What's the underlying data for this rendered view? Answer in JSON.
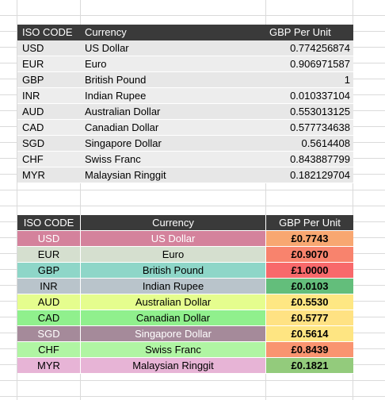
{
  "table1": {
    "headers": [
      "ISO CODE",
      "Currency",
      "GBP Per Unit"
    ],
    "rows": [
      {
        "code": "USD",
        "currency": "US Dollar",
        "value": "0.774256874"
      },
      {
        "code": "EUR",
        "currency": "Euro",
        "value": "0.906971587"
      },
      {
        "code": "GBP",
        "currency": "British Pound",
        "value": "1"
      },
      {
        "code": "INR",
        "currency": "Indian Rupee",
        "value": "0.010337104"
      },
      {
        "code": "AUD",
        "currency": "Australian Dollar",
        "value": "0.553013125"
      },
      {
        "code": "CAD",
        "currency": "Canadian Dollar",
        "value": "0.577734638"
      },
      {
        "code": "SGD",
        "currency": "Singapore Dollar",
        "value": "0.5614408"
      },
      {
        "code": "CHF",
        "currency": "Swiss Franc",
        "value": "0.843887799"
      },
      {
        "code": "MYR",
        "currency": "Malaysian Ringgit",
        "value": "0.182129704"
      }
    ]
  },
  "table2": {
    "headers": [
      "ISO CODE",
      "Currency",
      "GBP Per Unit"
    ],
    "rows": [
      {
        "code": "USD",
        "currency": "US Dollar",
        "value": "£0.7743",
        "row_color": "#d4829c",
        "text_color": "#ffffff",
        "value_color": "#f8a771"
      },
      {
        "code": "EUR",
        "currency": "Euro",
        "value": "£0.9070",
        "row_color": "#d5dfcf",
        "text_color": "#000000",
        "value_color": "#f8836d"
      },
      {
        "code": "GBP",
        "currency": "British Pound",
        "value": "£1.0000",
        "row_color": "#8ed6c8",
        "text_color": "#000000",
        "value_color": "#f8696b"
      },
      {
        "code": "INR",
        "currency": "Indian Rupee",
        "value": "£0.0103",
        "row_color": "#b9c4cb",
        "text_color": "#000000",
        "value_color": "#63be7b"
      },
      {
        "code": "AUD",
        "currency": "Australian Dollar",
        "value": "£0.5530",
        "row_color": "#e5fd8e",
        "text_color": "#000000",
        "value_color": "#fee783"
      },
      {
        "code": "CAD",
        "currency": "Canadian Dollar",
        "value": "£0.5777",
        "row_color": "#90f08d",
        "text_color": "#000000",
        "value_color": "#ffe283"
      },
      {
        "code": "SGD",
        "currency": "Singapore Dollar",
        "value": "£0.5614",
        "row_color": "#a58a9a",
        "text_color": "#ffffff",
        "value_color": "#fee582"
      },
      {
        "code": "CHF",
        "currency": "Swiss Franc",
        "value": "£0.8439",
        "row_color": "#b0f5a3",
        "text_color": "#000000",
        "value_color": "#f99470"
      },
      {
        "code": "MYR",
        "currency": "Malaysian Ringgit",
        "value": "£0.1821",
        "row_color": "#e7b4d6",
        "text_color": "#000000",
        "value_color": "#93cb7c"
      }
    ]
  }
}
